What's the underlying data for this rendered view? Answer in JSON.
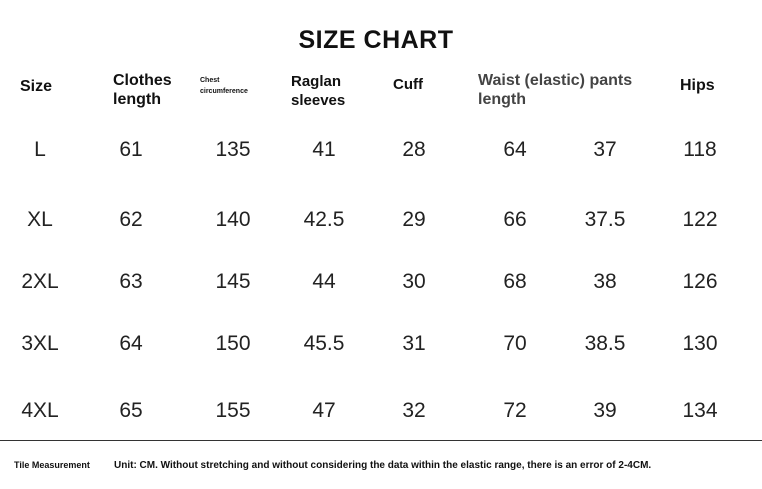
{
  "title": "SIZE CHART",
  "headers": {
    "size": "Size",
    "clothes_length_1": "Clothes",
    "clothes_length_2": "length",
    "chest_1": "Chest",
    "chest_2": "circumference",
    "raglan_1": "Raglan",
    "raglan_2": "sleeves",
    "cuff": "Cuff",
    "waist_1": "Waist (elastic) pants",
    "waist_2": "length",
    "hips": "Hips"
  },
  "rows": [
    [
      "L",
      "61",
      "135",
      "41",
      "28",
      "64",
      "37",
      "118"
    ],
    [
      "XL",
      "62",
      "140",
      "42.5",
      "29",
      "66",
      "37.5",
      "122"
    ],
    [
      "2XL",
      "63",
      "145",
      "44",
      "30",
      "68",
      "38",
      "126"
    ],
    [
      "3XL",
      "64",
      "150",
      "45.5",
      "31",
      "70",
      "38.5",
      "130"
    ],
    [
      "4XL",
      "65",
      "155",
      "47",
      "32",
      "72",
      "39",
      "134"
    ]
  ],
  "footer": {
    "label": "Tile Measurement",
    "note": "Unit: CM. Without stretching and without considering the data within the elastic range, there is an error of 2-4CM."
  }
}
